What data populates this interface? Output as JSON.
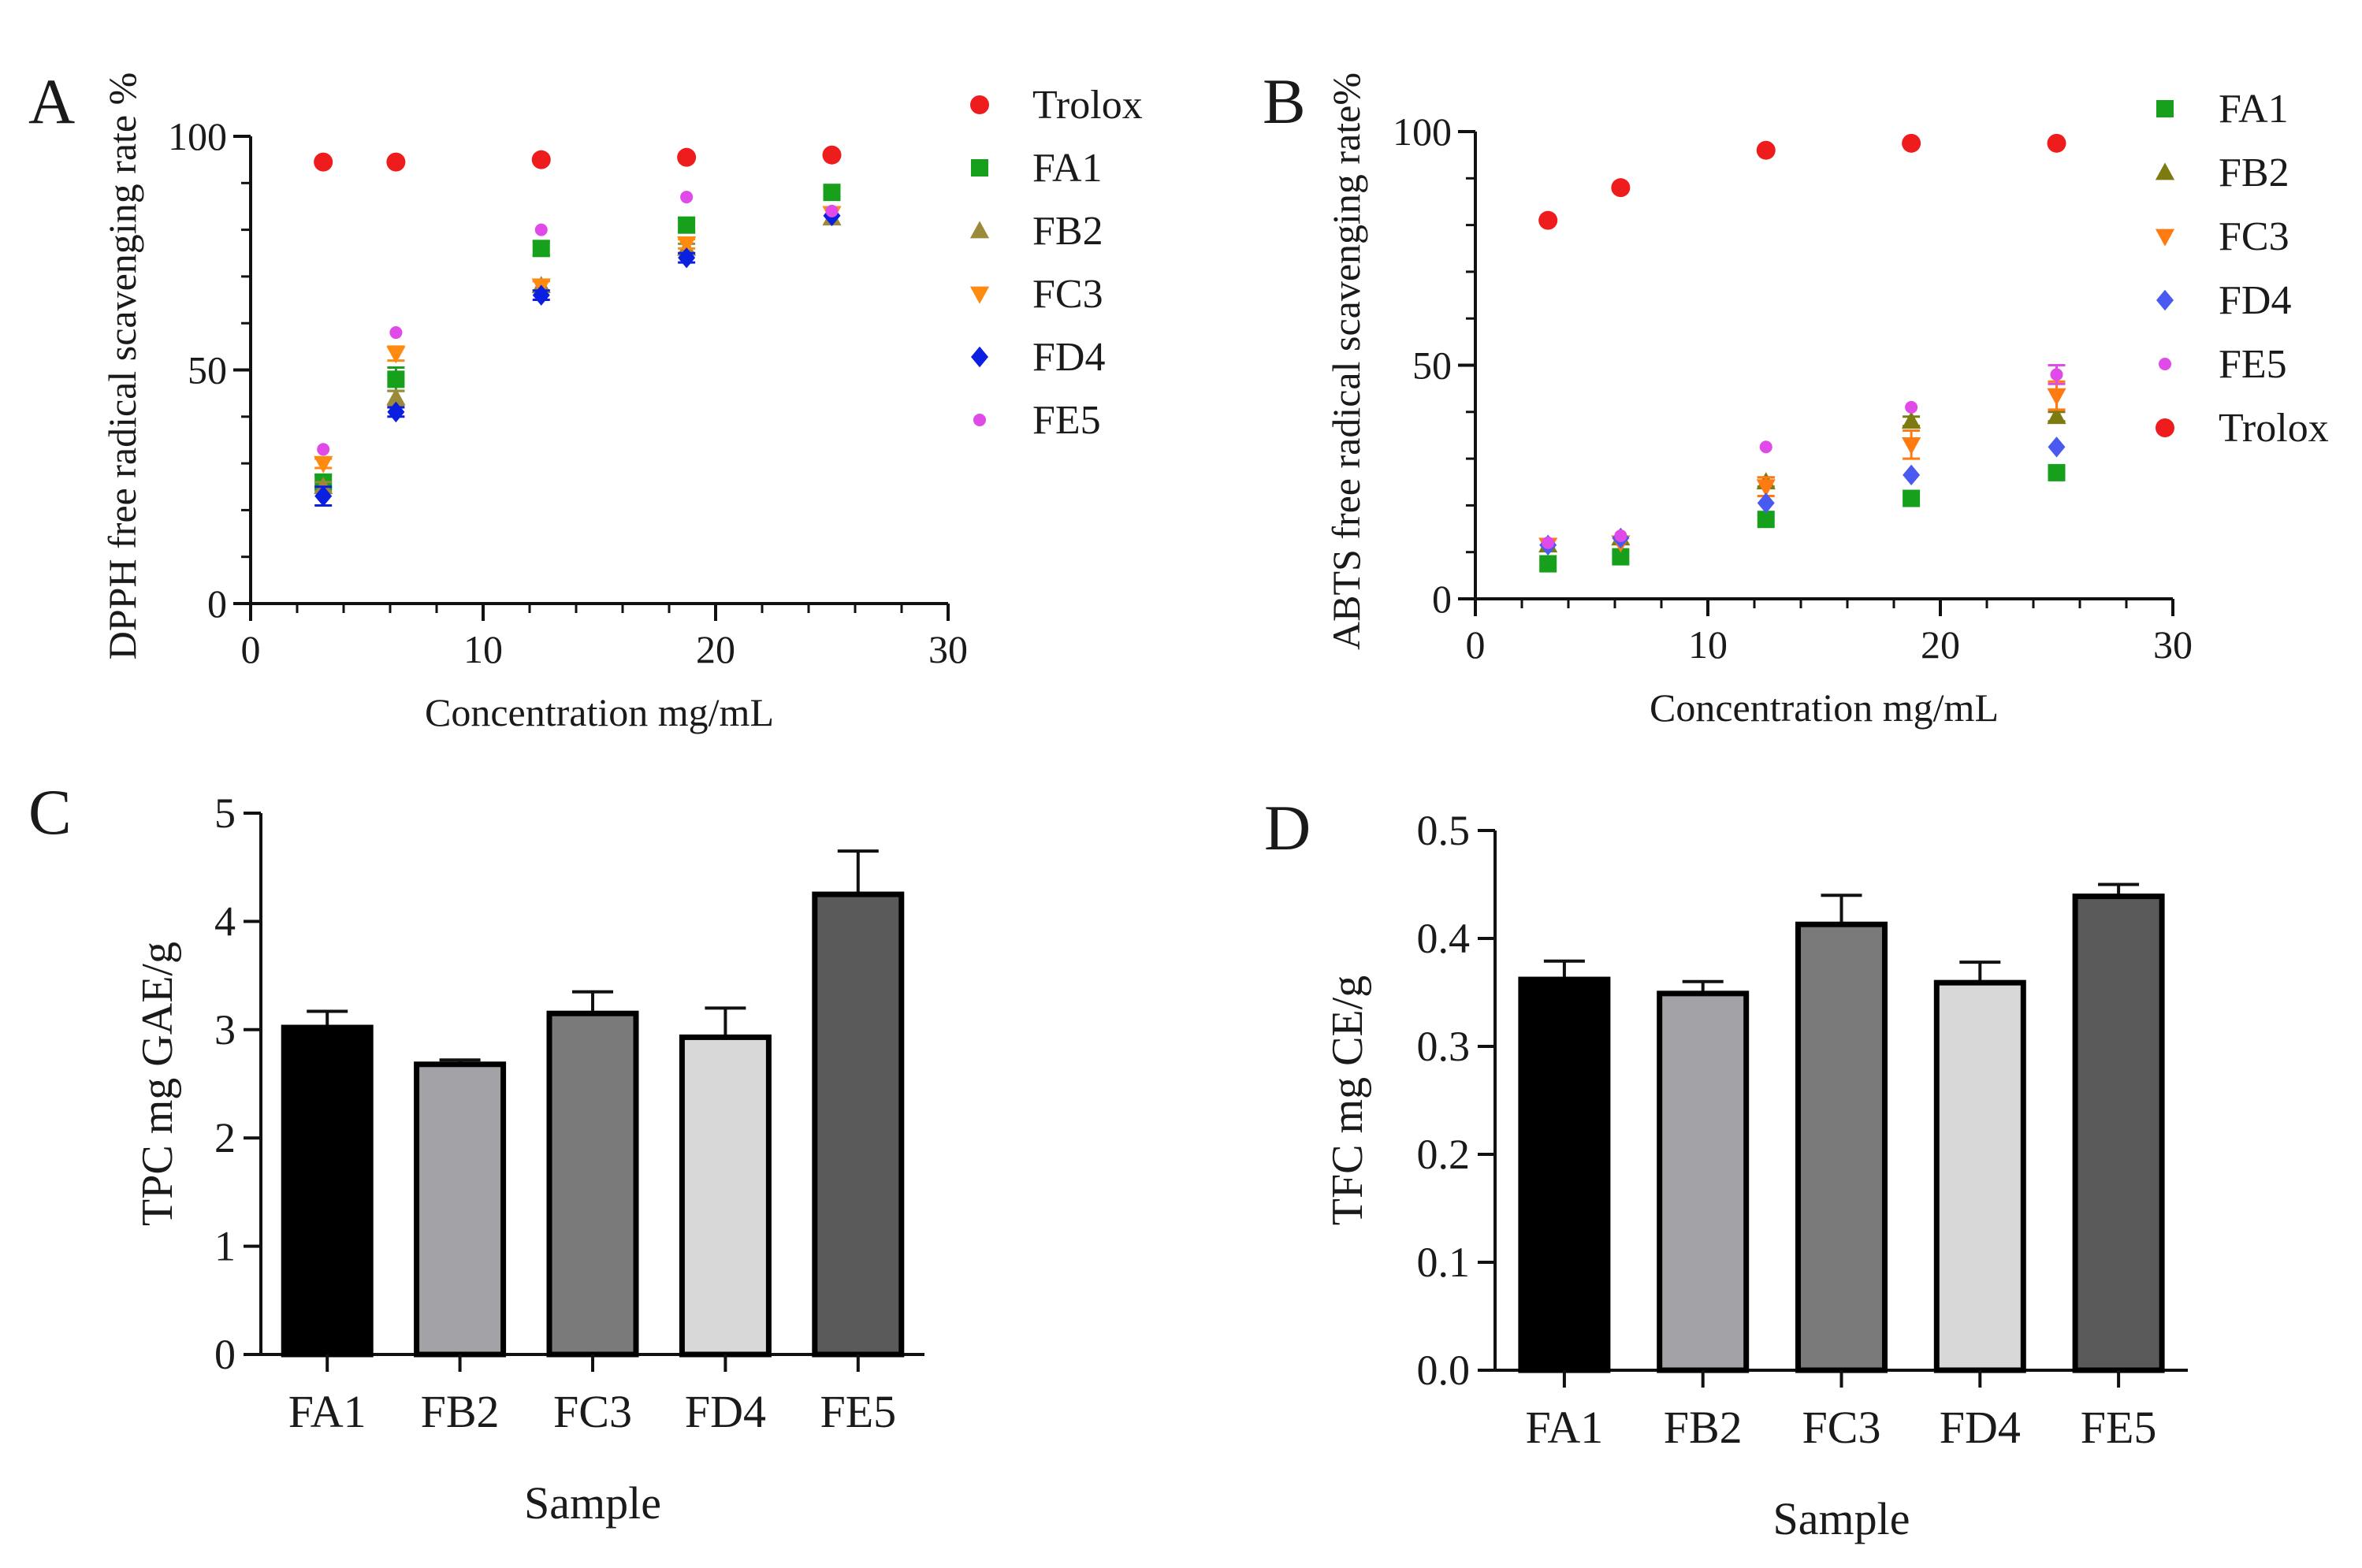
{
  "chart_data": [
    {
      "panel": "A",
      "type": "scatter",
      "title": "",
      "xlabel": "Concentration mg/mL",
      "ylabel": "DPPH free radical scavenging rate %",
      "xlim": [
        0,
        30
      ],
      "ylim": [
        0,
        100
      ],
      "xticks": [
        0,
        10,
        20,
        30
      ],
      "yticks": [
        0,
        50,
        100
      ],
      "grid": false,
      "legend_position": "right",
      "x": [
        3.125,
        6.25,
        12.5,
        18.75,
        25
      ],
      "series": [
        {
          "name": "Trolox",
          "marker": "circle",
          "color": "#ee1c1c",
          "values": [
            94.5,
            94.5,
            95,
            95.5,
            96
          ],
          "errors": [
            0,
            0,
            0,
            0,
            0
          ]
        },
        {
          "name": "FA1",
          "marker": "square",
          "color": "#16a01c",
          "values": [
            26,
            48,
            76,
            81,
            88
          ],
          "errors": [
            1.5,
            2.5,
            1.5,
            1.5,
            1
          ]
        },
        {
          "name": "FB2",
          "marker": "triangle-up",
          "color": "#9a8a3a",
          "values": [
            25,
            44,
            68,
            76,
            82.5
          ],
          "errors": [
            1,
            1.5,
            1,
            1,
            0.5
          ]
        },
        {
          "name": "FC3",
          "marker": "triangle-down",
          "color": "#ff8a10",
          "values": [
            30,
            53.5,
            68,
            77,
            83.5
          ],
          "errors": [
            1,
            1.5,
            1,
            1,
            0.5
          ]
        },
        {
          "name": "FD4",
          "marker": "diamond",
          "color": "#0b1fe0",
          "values": [
            23,
            41,
            66,
            74,
            83
          ],
          "errors": [
            2,
            1,
            1,
            1,
            0.5
          ]
        },
        {
          "name": "FE5",
          "marker": "circle",
          "color": "#e04ae8",
          "values": [
            33,
            58,
            80,
            87,
            84
          ],
          "errors": [
            0.5,
            0.5,
            0.5,
            0.5,
            0.5
          ]
        }
      ]
    },
    {
      "panel": "B",
      "type": "scatter",
      "title": "",
      "xlabel": "Concentration mg/mL",
      "ylabel": "ABTS free radical scavenging rate%",
      "xlim": [
        0,
        30
      ],
      "ylim": [
        0,
        100
      ],
      "xticks": [
        0,
        10,
        20,
        30
      ],
      "yticks": [
        0,
        50,
        100
      ],
      "grid": false,
      "legend_position": "right",
      "x": [
        3.125,
        6.25,
        12.5,
        18.75,
        25
      ],
      "series": [
        {
          "name": "FA1",
          "marker": "square",
          "color": "#16a01c",
          "values": [
            7.5,
            9,
            17,
            21.5,
            27
          ],
          "errors": [
            0.5,
            0.5,
            0.5,
            0.5,
            0.5
          ]
        },
        {
          "name": "FB2",
          "marker": "triangle-up",
          "color": "#7d7a10",
          "values": [
            11.5,
            13,
            25,
            38,
            39
          ],
          "errors": [
            0.5,
            0.5,
            1,
            1,
            1
          ]
        },
        {
          "name": "FC3",
          "marker": "triangle-down",
          "color": "#ff7a10",
          "values": [
            11.5,
            12,
            24,
            33,
            43.5
          ],
          "errors": [
            0.5,
            0.5,
            2,
            3,
            3
          ]
        },
        {
          "name": "FD4",
          "marker": "diamond",
          "color": "#4a5af0",
          "values": [
            11.5,
            13,
            20.5,
            26.5,
            32.5
          ],
          "errors": [
            0.5,
            0.5,
            0.5,
            0.5,
            0.5
          ]
        },
        {
          "name": "FE5",
          "marker": "circle",
          "color": "#e04ae8",
          "values": [
            12,
            13.5,
            32.5,
            41,
            48
          ],
          "errors": [
            0.5,
            0.5,
            0.5,
            0.5,
            2
          ]
        },
        {
          "name": "Trolox",
          "marker": "circle",
          "color": "#ee1c1c",
          "values": [
            81,
            88,
            96,
            97.5,
            97.5
          ],
          "errors": [
            0,
            0,
            0,
            0,
            0
          ]
        }
      ]
    },
    {
      "panel": "C",
      "type": "bar",
      "title": "",
      "xlabel": "Sample",
      "ylabel": "TPC mg GAE/g",
      "ylim": [
        0,
        5
      ],
      "yticks": [
        0,
        1,
        2,
        3,
        4,
        5
      ],
      "ytick_labels": [
        "0",
        "1",
        "2",
        "3",
        "4",
        "5"
      ],
      "grid": false,
      "categories": [
        "FA1",
        "FB2",
        "FC3",
        "FD4",
        "FE5"
      ],
      "values": [
        3.02,
        2.68,
        3.15,
        2.93,
        4.25
      ],
      "errors": [
        0.15,
        0.04,
        0.2,
        0.27,
        0.4
      ],
      "colors": [
        "#000000",
        "#a3a2a7",
        "#7a7a7a",
        "#d8d8d8",
        "#5a5a5a"
      ]
    },
    {
      "panel": "D",
      "type": "bar",
      "title": "",
      "xlabel": "Sample",
      "ylabel": "TFC mg CE/g",
      "ylim": [
        0,
        0.5
      ],
      "yticks": [
        0,
        0.1,
        0.2,
        0.3,
        0.4,
        0.5
      ],
      "ytick_labels": [
        "0.0",
        "0.1",
        "0.2",
        "0.3",
        "0.4",
        "0.5"
      ],
      "grid": false,
      "categories": [
        "FA1",
        "FB2",
        "FC3",
        "FD4",
        "FE5"
      ],
      "values": [
        0.362,
        0.349,
        0.413,
        0.359,
        0.439
      ],
      "errors": [
        0.017,
        0.011,
        0.027,
        0.019,
        0.011
      ],
      "colors": [
        "#000000",
        "#a3a2a7",
        "#7a7a7a",
        "#d8d8d8",
        "#5a5a5a"
      ]
    }
  ]
}
